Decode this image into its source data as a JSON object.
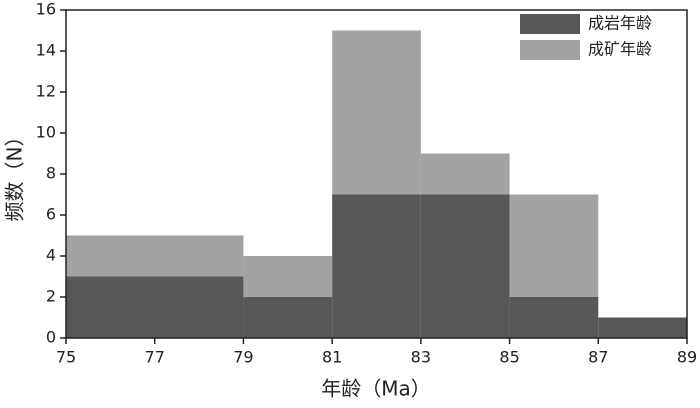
{
  "chart_data": {
    "type": "histogram",
    "x_label": "年龄（Ma）",
    "y_label": "频数（N）",
    "bins": [
      75,
      79,
      81,
      83,
      85,
      87,
      89
    ],
    "series": [
      {
        "name": "成岩年龄",
        "color": "#575757",
        "values": [
          3,
          2,
          7,
          7,
          2,
          1
        ]
      },
      {
        "name": "成矿年龄",
        "color": "#a3a3a3",
        "values": [
          2,
          2,
          8,
          2,
          5,
          0
        ]
      }
    ],
    "stacked": true,
    "xlim": [
      75,
      89
    ],
    "xticks": [
      75,
      77,
      79,
      81,
      83,
      85,
      87,
      89
    ],
    "ylim": [
      0,
      16
    ],
    "yticks": [
      0,
      2,
      4,
      6,
      8,
      10,
      12,
      14,
      16
    ],
    "legend": "upper right"
  }
}
